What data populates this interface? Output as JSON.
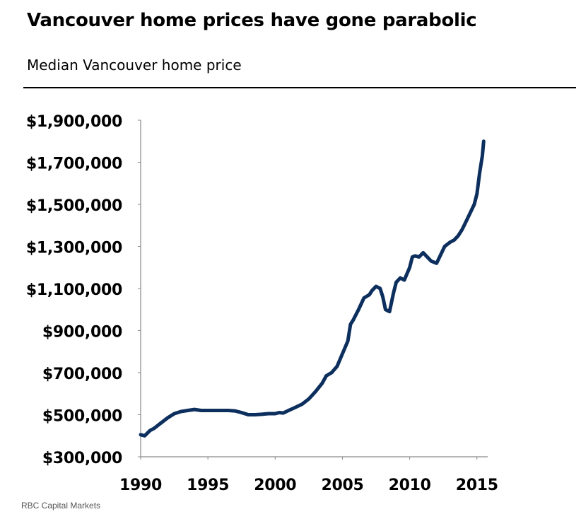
{
  "title": "Vancouver home prices have gone parabolic",
  "subtitle": "Median Vancouver home price",
  "source": "RBC Capital Markets",
  "colors": {
    "line": "#0d2f5e",
    "axis": "#8a8a8a",
    "text": "#000000"
  },
  "chart_data": {
    "type": "line",
    "title": "Vancouver home prices have gone parabolic",
    "subtitle": "Median Vancouver home price",
    "xlabel": "",
    "ylabel": "",
    "xlim": [
      1990,
      2015.8
    ],
    "ylim": [
      300000,
      1900000
    ],
    "grid": false,
    "legend": "none",
    "x_ticks": [
      1990,
      1995,
      2000,
      2005,
      2010,
      2015
    ],
    "x_tick_labels": [
      "1990",
      "1995",
      "2000",
      "2005",
      "2010",
      "2015"
    ],
    "y_ticks": [
      300000,
      500000,
      700000,
      900000,
      1100000,
      1300000,
      1500000,
      1700000,
      1900000
    ],
    "y_tick_labels": [
      "$300,000",
      "$500,000",
      "$700,000",
      "$900,000",
      "$1,100,000",
      "$1,300,000",
      "$1,500,000",
      "$1,700,000",
      "$1,900,000"
    ],
    "series": [
      {
        "name": "",
        "x": [
          1990.0,
          1990.3,
          1990.7,
          1991.0,
          1991.5,
          1992.0,
          1992.5,
          1993.0,
          1993.5,
          1994.0,
          1994.5,
          1995.0,
          1995.5,
          1996.0,
          1996.5,
          1997.0,
          1997.5,
          1998.0,
          1998.5,
          1999.0,
          1999.5,
          2000.0,
          2000.3,
          2000.6,
          2001.0,
          2001.5,
          2002.0,
          2002.5,
          2003.0,
          2003.5,
          2003.8,
          2004.2,
          2004.6,
          2005.0,
          2005.2,
          2005.4,
          2005.6,
          2005.8,
          2006.2,
          2006.6,
          2007.0,
          2007.2,
          2007.5,
          2007.8,
          2008.0,
          2008.2,
          2008.5,
          2008.8,
          2009.0,
          2009.3,
          2009.6,
          2010.0,
          2010.2,
          2010.4,
          2010.7,
          2011.0,
          2011.3,
          2011.6,
          2012.0,
          2012.3,
          2012.6,
          2013.0,
          2013.3,
          2013.6,
          2013.9,
          2014.2,
          2014.5,
          2014.8,
          2015.0,
          2015.2,
          2015.4,
          2015.5
        ],
        "values": [
          405000,
          400000,
          425000,
          435000,
          460000,
          485000,
          505000,
          515000,
          520000,
          525000,
          520000,
          520000,
          520000,
          520000,
          520000,
          518000,
          510000,
          500000,
          500000,
          502000,
          505000,
          505000,
          510000,
          508000,
          520000,
          535000,
          550000,
          575000,
          610000,
          650000,
          685000,
          700000,
          730000,
          790000,
          820000,
          850000,
          930000,
          950000,
          1000000,
          1055000,
          1070000,
          1090000,
          1110000,
          1100000,
          1060000,
          1000000,
          990000,
          1080000,
          1130000,
          1150000,
          1140000,
          1200000,
          1250000,
          1255000,
          1250000,
          1270000,
          1250000,
          1230000,
          1220000,
          1260000,
          1300000,
          1320000,
          1330000,
          1350000,
          1380000,
          1420000,
          1460000,
          1500000,
          1550000,
          1650000,
          1730000,
          1800000
        ]
      }
    ]
  }
}
